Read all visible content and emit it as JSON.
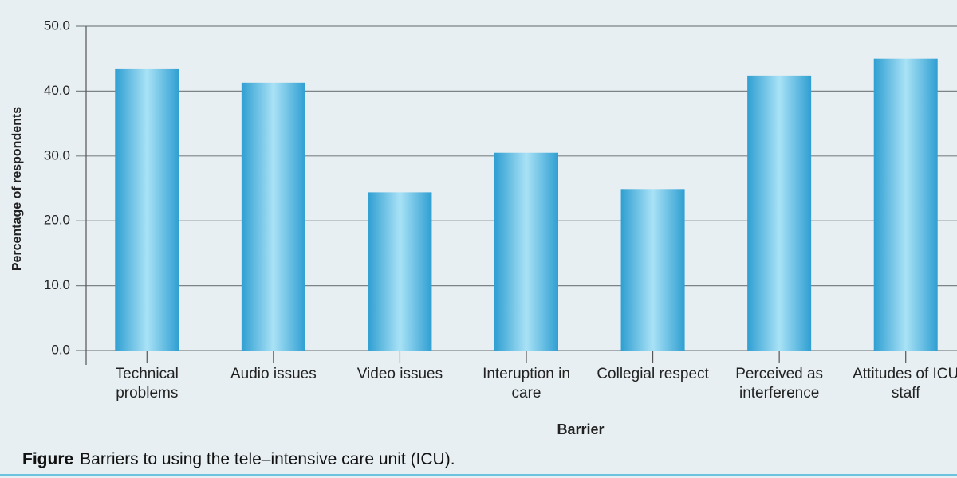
{
  "chart_data": {
    "type": "bar",
    "x_label": "Barrier",
    "y_label": "Percentage of respondents",
    "categories": [
      "Technical problems",
      "Audio issues",
      "Video issues",
      "Interuption in care",
      "Collegial respect",
      "Perceived as interference",
      "Attitudes of ICU staff"
    ],
    "values": [
      43.5,
      41.3,
      24.4,
      30.5,
      24.9,
      42.4,
      45.0
    ],
    "color": "#3aa9d9",
    "ylim": [
      0,
      50
    ],
    "yticks": [
      {
        "value": 0,
        "label": "0.0"
      },
      {
        "value": 10,
        "label": "10.0"
      },
      {
        "value": 20,
        "label": "20.0"
      },
      {
        "value": 30,
        "label": "30.0"
      },
      {
        "value": 40,
        "label": "40.0"
      },
      {
        "value": 50,
        "label": "50.0"
      }
    ],
    "grid": true
  },
  "caption": {
    "label": "Figure",
    "text": "Barriers to using the tele–intensive care unit (ICU)."
  }
}
